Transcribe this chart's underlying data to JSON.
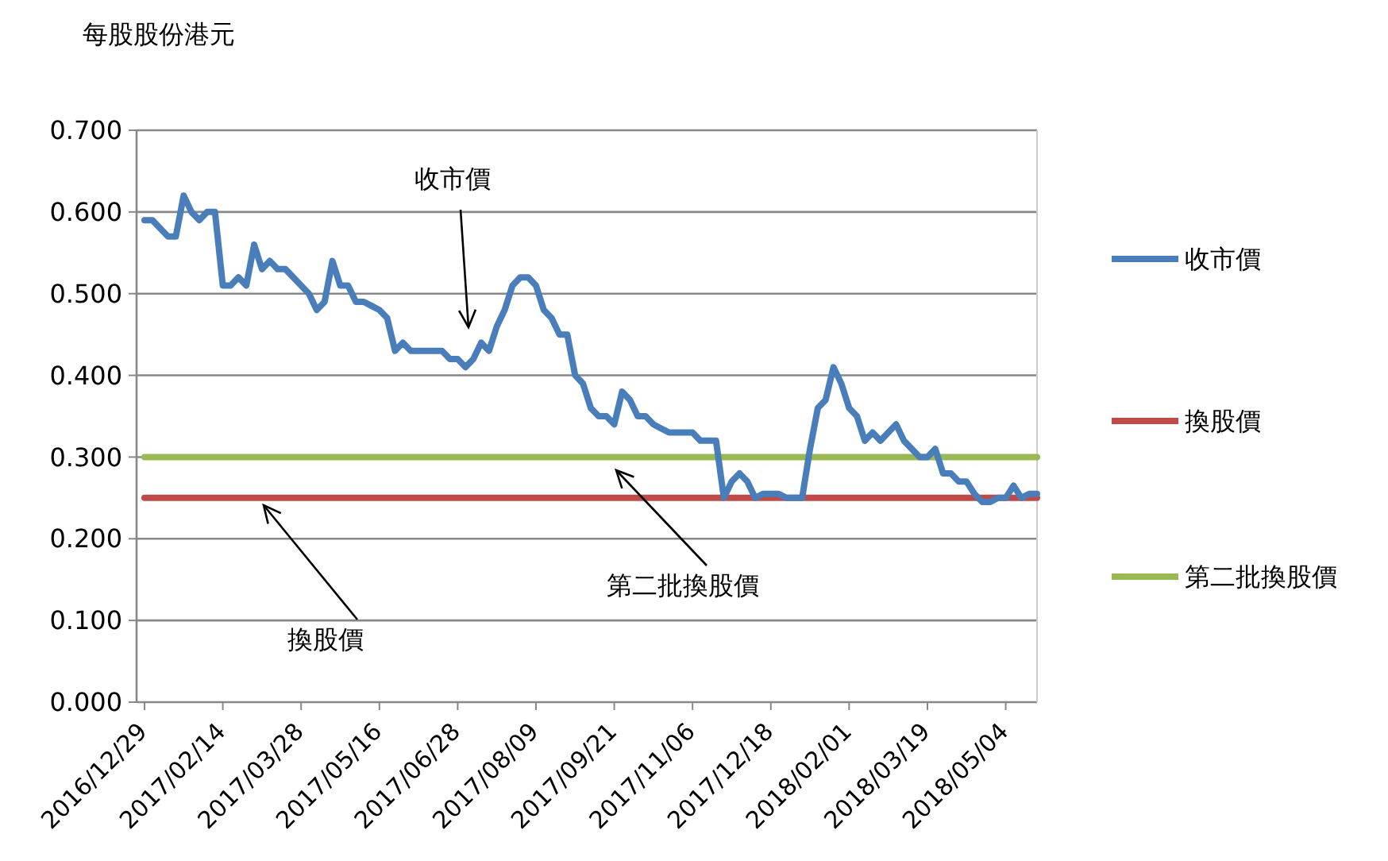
{
  "chart_data": {
    "type": "line",
    "ylabel": "每股股份港元",
    "categories": [
      "2016/12/29",
      null,
      null,
      null,
      null,
      null,
      null,
      null,
      null,
      null,
      "2017/02/14",
      null,
      null,
      null,
      null,
      null,
      null,
      null,
      null,
      null,
      "2017/03/28",
      null,
      null,
      null,
      null,
      null,
      null,
      null,
      null,
      null,
      "2017/05/16",
      null,
      null,
      null,
      null,
      null,
      null,
      null,
      null,
      null,
      "2017/06/28",
      null,
      null,
      null,
      null,
      null,
      null,
      null,
      null,
      null,
      "2017/08/09",
      null,
      null,
      null,
      null,
      null,
      null,
      null,
      null,
      null,
      "2017/09/21",
      null,
      null,
      null,
      null,
      null,
      null,
      null,
      null,
      null,
      "2017/11/06",
      null,
      null,
      null,
      null,
      null,
      null,
      null,
      null,
      null,
      "2017/12/18",
      null,
      null,
      null,
      null,
      null,
      null,
      null,
      null,
      null,
      "2018/02/01",
      null,
      null,
      null,
      null,
      null,
      null,
      null,
      null,
      null,
      "2018/03/19",
      null,
      null,
      null,
      null,
      null,
      null,
      null,
      null,
      null,
      "2018/05/04",
      null,
      null,
      null,
      null
    ],
    "series": [
      {
        "name": "收市價",
        "color": "#4a7ebb",
        "values": [
          0.59,
          0.59,
          0.58,
          0.57,
          0.57,
          0.62,
          0.6,
          0.59,
          0.6,
          0.6,
          0.51,
          0.51,
          0.52,
          0.51,
          0.56,
          0.53,
          0.54,
          0.53,
          0.53,
          0.52,
          0.51,
          0.5,
          0.48,
          0.49,
          0.54,
          0.51,
          0.51,
          0.49,
          0.49,
          0.485,
          0.48,
          0.47,
          0.43,
          0.44,
          0.43,
          0.43,
          0.43,
          0.43,
          0.43,
          0.42,
          0.42,
          0.41,
          0.42,
          0.44,
          0.43,
          0.46,
          0.48,
          0.51,
          0.52,
          0.52,
          0.51,
          0.48,
          0.47,
          0.45,
          0.45,
          0.4,
          0.39,
          0.36,
          0.35,
          0.35,
          0.34,
          0.38,
          0.37,
          0.35,
          0.35,
          0.34,
          0.335,
          0.33,
          0.33,
          0.33,
          0.33,
          0.32,
          0.32,
          0.32,
          0.25,
          0.27,
          0.28,
          0.27,
          0.25,
          0.255,
          0.255,
          0.255,
          0.25,
          0.25,
          0.25,
          0.31,
          0.36,
          0.37,
          0.41,
          0.39,
          0.36,
          0.35,
          0.32,
          0.33,
          0.32,
          0.33,
          0.34,
          0.32,
          0.31,
          0.3,
          0.3,
          0.31,
          0.28,
          0.28,
          0.27,
          0.27,
          0.255,
          0.245,
          0.245,
          0.25,
          0.25,
          0.265,
          0.25,
          0.255,
          0.255
        ]
      },
      {
        "name": "換股價",
        "color": "#be4b48",
        "values": [
          0.25,
          0.25,
          0.25,
          0.25,
          0.25,
          0.25,
          0.25,
          0.25,
          0.25,
          0.25,
          0.25,
          0.25,
          0.25,
          0.25,
          0.25,
          0.25,
          0.25,
          0.25,
          0.25,
          0.25,
          0.25,
          0.25,
          0.25,
          0.25,
          0.25,
          0.25,
          0.25,
          0.25,
          0.25,
          0.25,
          0.25,
          0.25,
          0.25,
          0.25,
          0.25,
          0.25,
          0.25,
          0.25,
          0.25,
          0.25,
          0.25,
          0.25,
          0.25,
          0.25,
          0.25,
          0.25,
          0.25,
          0.25,
          0.25,
          0.25,
          0.25,
          0.25,
          0.25,
          0.25,
          0.25,
          0.25,
          0.25,
          0.25,
          0.25,
          0.25,
          0.25,
          0.25,
          0.25,
          0.25,
          0.25,
          0.25,
          0.25,
          0.25,
          0.25,
          0.25,
          0.25,
          0.25,
          0.25,
          0.25,
          0.25,
          0.25,
          0.25,
          0.25,
          0.25,
          0.25,
          0.25,
          0.25,
          0.25,
          0.25,
          0.25,
          0.25,
          0.25,
          0.25,
          0.25,
          0.25,
          0.25,
          0.25,
          0.25,
          0.25,
          0.25,
          0.25,
          0.25,
          0.25,
          0.25,
          0.25,
          0.25,
          0.25,
          0.25,
          0.25,
          0.25,
          0.25,
          0.25,
          0.25,
          0.25,
          0.25,
          0.25,
          0.25,
          0.25,
          0.25,
          0.25
        ]
      },
      {
        "name": "第二批換股價",
        "color": "#98b954",
        "values": [
          0.3,
          0.3,
          0.3,
          0.3,
          0.3,
          0.3,
          0.3,
          0.3,
          0.3,
          0.3,
          0.3,
          0.3,
          0.3,
          0.3,
          0.3,
          0.3,
          0.3,
          0.3,
          0.3,
          0.3,
          0.3,
          0.3,
          0.3,
          0.3,
          0.3,
          0.3,
          0.3,
          0.3,
          0.3,
          0.3,
          0.3,
          0.3,
          0.3,
          0.3,
          0.3,
          0.3,
          0.3,
          0.3,
          0.3,
          0.3,
          0.3,
          0.3,
          0.3,
          0.3,
          0.3,
          0.3,
          0.3,
          0.3,
          0.3,
          0.3,
          0.3,
          0.3,
          0.3,
          0.3,
          0.3,
          0.3,
          0.3,
          0.3,
          0.3,
          0.3,
          0.3,
          0.3,
          0.3,
          0.3,
          0.3,
          0.3,
          0.3,
          0.3,
          0.3,
          0.3,
          0.3,
          0.3,
          0.3,
          0.3,
          0.3,
          0.3,
          0.3,
          0.3,
          0.3,
          0.3,
          0.3,
          0.3,
          0.3,
          0.3,
          0.3,
          0.3,
          0.3,
          0.3,
          0.3,
          0.3,
          0.3,
          0.3,
          0.3,
          0.3,
          0.3,
          0.3,
          0.3,
          0.3,
          0.3,
          0.3,
          0.3,
          0.3,
          0.3,
          0.3,
          0.3,
          0.3,
          0.3,
          0.3,
          0.3,
          0.3,
          0.3,
          0.3,
          0.3,
          0.3,
          0.3
        ]
      }
    ],
    "ylim": [
      0,
      0.7
    ],
    "yticks": [
      {
        "value": 0,
        "label": "0.000"
      },
      {
        "value": 0.1,
        "label": "0.100"
      },
      {
        "value": 0.2,
        "label": "0.200"
      },
      {
        "value": 0.3,
        "label": "0.300"
      },
      {
        "value": 0.4,
        "label": "0.400"
      },
      {
        "value": 0.5,
        "label": "0.500"
      },
      {
        "value": 0.6,
        "label": "0.600"
      },
      {
        "value": 0.7,
        "label": "0.700"
      }
    ],
    "grid": "y",
    "legend": "right",
    "marker": "none",
    "line_style": "solid",
    "annotations": [
      "收市價",
      "第二批換股價",
      "換股價"
    ]
  }
}
